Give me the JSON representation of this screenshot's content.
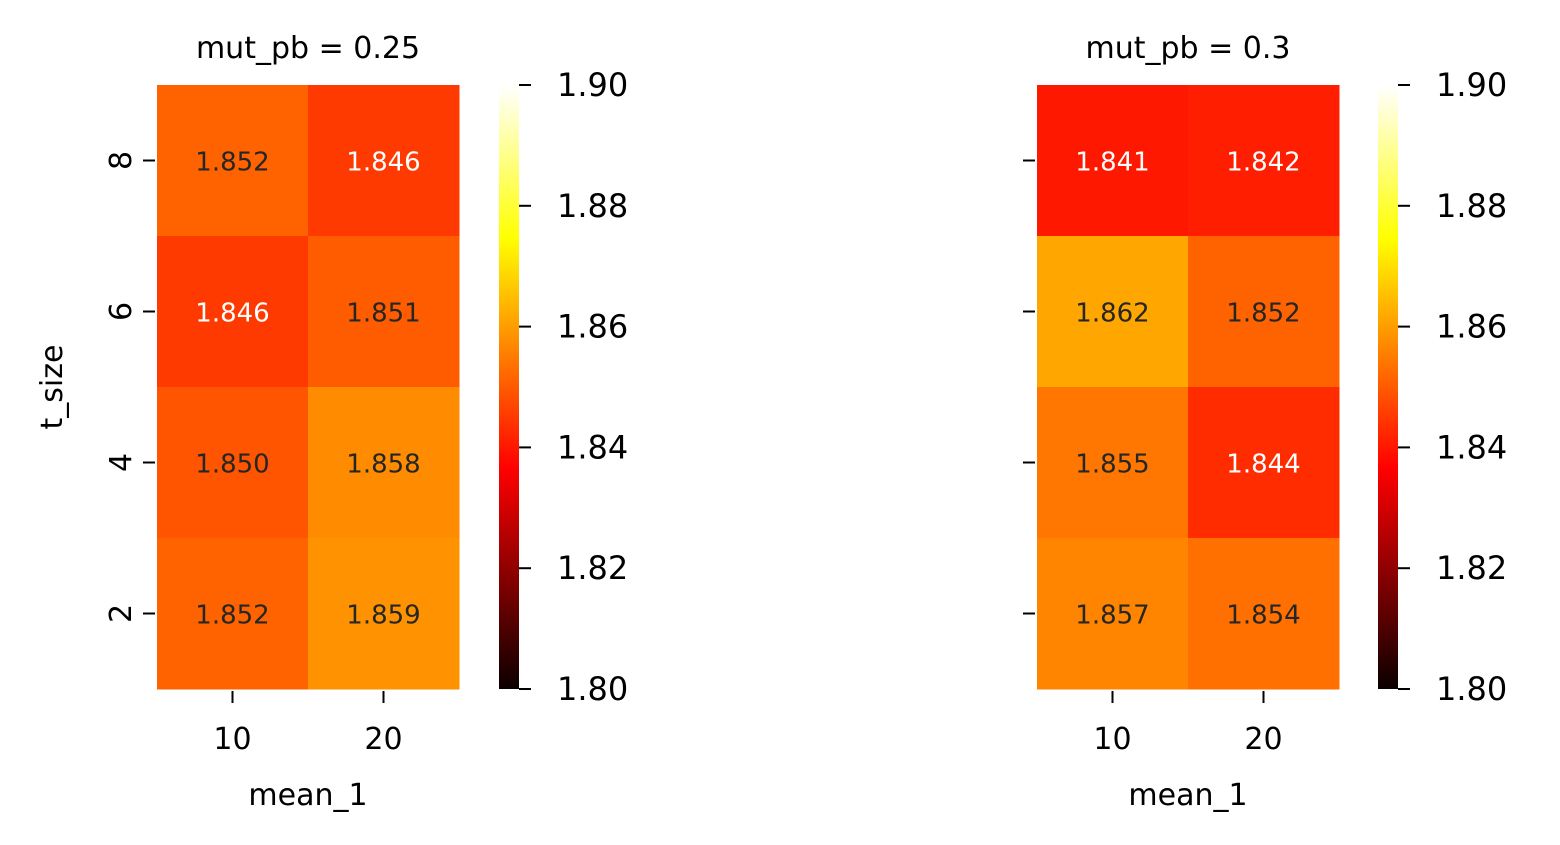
{
  "chart_data": [
    {
      "type": "heatmap",
      "title": "mut_pb = 0.25",
      "xlabel": "mean_1",
      "ylabel": "t_size",
      "x_categories": [
        "10",
        "20"
      ],
      "y_categories": [
        "8",
        "6",
        "4",
        "2"
      ],
      "values": [
        [
          1.852,
          1.846
        ],
        [
          1.846,
          1.851
        ],
        [
          1.85,
          1.858
        ],
        [
          1.852,
          1.859
        ]
      ],
      "cell_labels": [
        [
          "1.852",
          "1.846"
        ],
        [
          "1.846",
          "1.851"
        ],
        [
          "1.850",
          "1.858"
        ],
        [
          "1.852",
          "1.859"
        ]
      ],
      "colormap": "hot",
      "colorbar": {
        "range": [
          1.8,
          1.9
        ],
        "ticks": [
          "1.80",
          "1.82",
          "1.84",
          "1.86",
          "1.88",
          "1.90"
        ]
      },
      "show_y_tick_labels": true
    },
    {
      "type": "heatmap",
      "title": "mut_pb = 0.3",
      "xlabel": "mean_1",
      "ylabel": "",
      "x_categories": [
        "10",
        "20"
      ],
      "y_categories": [
        "8",
        "6",
        "4",
        "2"
      ],
      "values": [
        [
          1.841,
          1.842
        ],
        [
          1.862,
          1.852
        ],
        [
          1.855,
          1.844
        ],
        [
          1.857,
          1.854
        ]
      ],
      "cell_labels": [
        [
          "1.841",
          "1.842"
        ],
        [
          "1.862",
          "1.852"
        ],
        [
          "1.855",
          "1.844"
        ],
        [
          "1.857",
          "1.854"
        ]
      ],
      "colormap": "hot",
      "colorbar": {
        "range": [
          1.8,
          1.9
        ],
        "ticks": [
          "1.80",
          "1.82",
          "1.84",
          "1.86",
          "1.88",
          "1.90"
        ]
      },
      "show_y_tick_labels": false
    }
  ]
}
